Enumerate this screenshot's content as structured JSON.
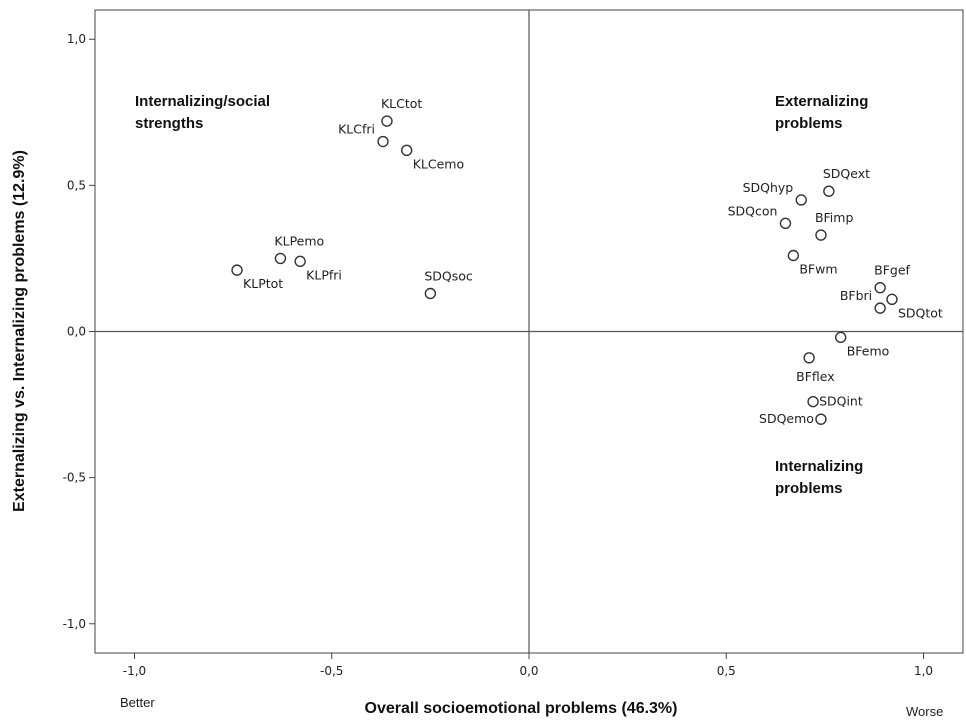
{
  "chart_data": {
    "type": "scatter",
    "xlabel": "Overall socioemotional problems (46.3%)",
    "ylabel": "Externalizing vs. Internalizing problems (12.9%)",
    "xlim": [
      -1.1,
      1.1
    ],
    "ylim": [
      -1.1,
      1.1
    ],
    "x_ticks": [
      -1.0,
      -0.5,
      0.0,
      0.5,
      1.0
    ],
    "y_ticks": [
      -1.0,
      -0.5,
      0.0,
      0.5,
      1.0
    ],
    "x_tick_labels": [
      "-1,0",
      "-0,5",
      "0,0",
      "0,5",
      "1,0"
    ],
    "y_tick_labels": [
      "-1,0",
      "-0,5",
      "0,0",
      "0,5",
      "1,0"
    ],
    "reference_lines": {
      "x": 0,
      "y": 0
    },
    "x_end_labels": {
      "left": "Better",
      "right": "Worse"
    },
    "quadrant_labels": [
      {
        "lines": [
          "Internalizing/social",
          "strengths"
        ],
        "quadrant": "top-left"
      },
      {
        "lines": [
          "Externalizing",
          "problems"
        ],
        "quadrant": "top-right"
      },
      {
        "lines": [
          "Internalizing",
          "problems"
        ],
        "quadrant": "bottom-right"
      }
    ],
    "points": [
      {
        "label": "KLCtot",
        "x": -0.36,
        "y": 0.72,
        "label_pos": "above"
      },
      {
        "label": "KLCfri",
        "x": -0.37,
        "y": 0.65,
        "label_pos": "above-left"
      },
      {
        "label": "KLCemo",
        "x": -0.31,
        "y": 0.62,
        "label_pos": "below-right"
      },
      {
        "label": "KLPemo",
        "x": -0.63,
        "y": 0.25,
        "label_pos": "above"
      },
      {
        "label": "KLPfri",
        "x": -0.58,
        "y": 0.24,
        "label_pos": "below-right"
      },
      {
        "label": "KLPtot",
        "x": -0.74,
        "y": 0.21,
        "label_pos": "below-right"
      },
      {
        "label": "SDQsoc",
        "x": -0.25,
        "y": 0.13,
        "label_pos": "above-right"
      },
      {
        "label": "SDQext",
        "x": 0.76,
        "y": 0.48,
        "label_pos": "above-right"
      },
      {
        "label": "SDQhyp",
        "x": 0.69,
        "y": 0.45,
        "label_pos": "above-left"
      },
      {
        "label": "SDQcon",
        "x": 0.65,
        "y": 0.37,
        "label_pos": "above-left"
      },
      {
        "label": "BFimp",
        "x": 0.74,
        "y": 0.33,
        "label_pos": "above-right"
      },
      {
        "label": "BFwm",
        "x": 0.67,
        "y": 0.26,
        "label_pos": "below-right"
      },
      {
        "label": "BFgef",
        "x": 0.89,
        "y": 0.15,
        "label_pos": "above-right"
      },
      {
        "label": "BFbri",
        "x": 0.89,
        "y": 0.08,
        "label_pos": "above-left"
      },
      {
        "label": "SDQtot",
        "x": 0.92,
        "y": 0.11,
        "label_pos": "below-right"
      },
      {
        "label": "BFemo",
        "x": 0.79,
        "y": -0.02,
        "label_pos": "below-right"
      },
      {
        "label": "BFflex",
        "x": 0.71,
        "y": -0.09,
        "label_pos": "below"
      },
      {
        "label": "SDQint",
        "x": 0.72,
        "y": -0.24,
        "label_pos": "right"
      },
      {
        "label": "SDQemo",
        "x": 0.74,
        "y": -0.3,
        "label_pos": "left"
      }
    ]
  }
}
